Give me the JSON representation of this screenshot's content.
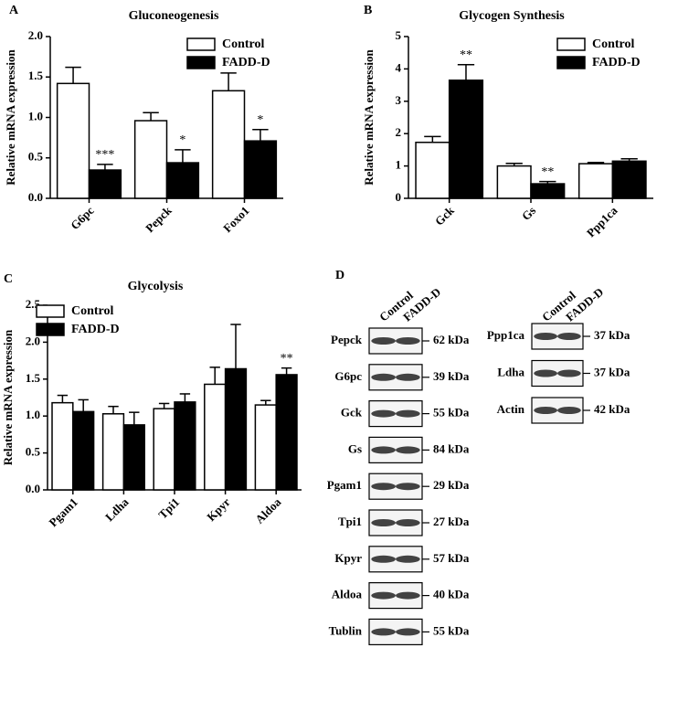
{
  "chart_data": [
    {
      "type": "bar",
      "letter": "A",
      "title": "Gluconeogenesis",
      "y_label": "Relative mRNA expression",
      "categories": [
        "G6pc",
        "Pepck",
        "Foxo1"
      ],
      "series": [
        {
          "name": "Control",
          "color": "#ffffff",
          "values": [
            1.42,
            0.96,
            1.33
          ],
          "errors": [
            0.2,
            0.1,
            0.22
          ]
        },
        {
          "name": "FADD-D",
          "color": "#000000",
          "values": [
            0.35,
            0.44,
            0.71
          ],
          "errors": [
            0.07,
            0.16,
            0.14
          ],
          "annotations": [
            "***",
            "*",
            "*"
          ]
        }
      ],
      "ylim": [
        0,
        2
      ],
      "yticks": [
        {
          "value": 0,
          "label": "0.0"
        },
        0.5,
        {
          "value": 1,
          "label": "1.0"
        },
        1.5,
        {
          "value": 2,
          "label": "2.0"
        }
      ],
      "legend": "upper right"
    },
    {
      "type": "bar",
      "letter": "B",
      "title": "Glycogen Synthesis",
      "y_label": "Relative mRNA expression",
      "categories": [
        "Gck",
        "Gs",
        "Ppp1ca"
      ],
      "series": [
        {
          "name": "Control",
          "color": "#ffffff",
          "values": [
            1.73,
            1.0,
            1.07
          ],
          "errors": [
            0.18,
            0.08,
            0.04
          ]
        },
        {
          "name": "FADD-D",
          "color": "#000000",
          "values": [
            3.65,
            0.45,
            1.15
          ],
          "errors": [
            0.48,
            0.07,
            0.07
          ],
          "annotations": [
            "**",
            "**",
            null
          ]
        }
      ],
      "ylim": [
        0,
        5
      ],
      "yticks": [
        0,
        1,
        2,
        3,
        4,
        5
      ],
      "legend": "upper right"
    },
    {
      "type": "bar",
      "letter": "C",
      "title": "Glycolysis",
      "y_label": "Relative mRNA expression",
      "categories": [
        "Pgam1",
        "Ldha",
        "Tpi1",
        "Kpyr",
        "Aldoa"
      ],
      "series": [
        {
          "name": "Control",
          "color": "#ffffff",
          "values": [
            1.18,
            1.03,
            1.1,
            1.43,
            1.15
          ],
          "errors": [
            0.1,
            0.1,
            0.07,
            0.23,
            0.06
          ]
        },
        {
          "name": "FADD-D",
          "color": "#000000",
          "values": [
            1.06,
            0.88,
            1.19,
            1.64,
            1.56
          ],
          "errors": [
            0.16,
            0.17,
            0.11,
            0.6,
            0.09
          ],
          "annotations": [
            null,
            null,
            null,
            null,
            "**"
          ]
        }
      ],
      "ylim": [
        0,
        2.5
      ],
      "yticks": [
        {
          "value": 0,
          "label": "0.0"
        },
        0.5,
        {
          "value": 1,
          "label": "1.0"
        },
        1.5,
        {
          "value": 2,
          "label": "2.0"
        },
        2.5
      ],
      "legend": "upper left"
    }
  ],
  "blot_panel": {
    "letter": "D",
    "columns": [
      "Control",
      "FADD-D"
    ],
    "left": [
      {
        "protein": "Pepck",
        "size": "62 kDa"
      },
      {
        "protein": "G6pc",
        "size": "39 kDa"
      },
      {
        "protein": "Gck",
        "size": "55 kDa"
      },
      {
        "protein": "Gs",
        "size": "84 kDa"
      },
      {
        "protein": "Pgam1",
        "size": "29 kDa"
      },
      {
        "protein": "Tpi1",
        "size": "27 kDa"
      },
      {
        "protein": "Kpyr",
        "size": "57 kDa"
      },
      {
        "protein": "Aldoa",
        "size": "40 kDa"
      },
      {
        "protein": "Tublin",
        "size": "55 kDa"
      }
    ],
    "right": [
      {
        "protein": "Ppp1ca",
        "size": "37 kDa"
      },
      {
        "protein": "Ldha",
        "size": "37 kDa"
      },
      {
        "protein": "Actin",
        "size": "42 kDa"
      }
    ]
  }
}
